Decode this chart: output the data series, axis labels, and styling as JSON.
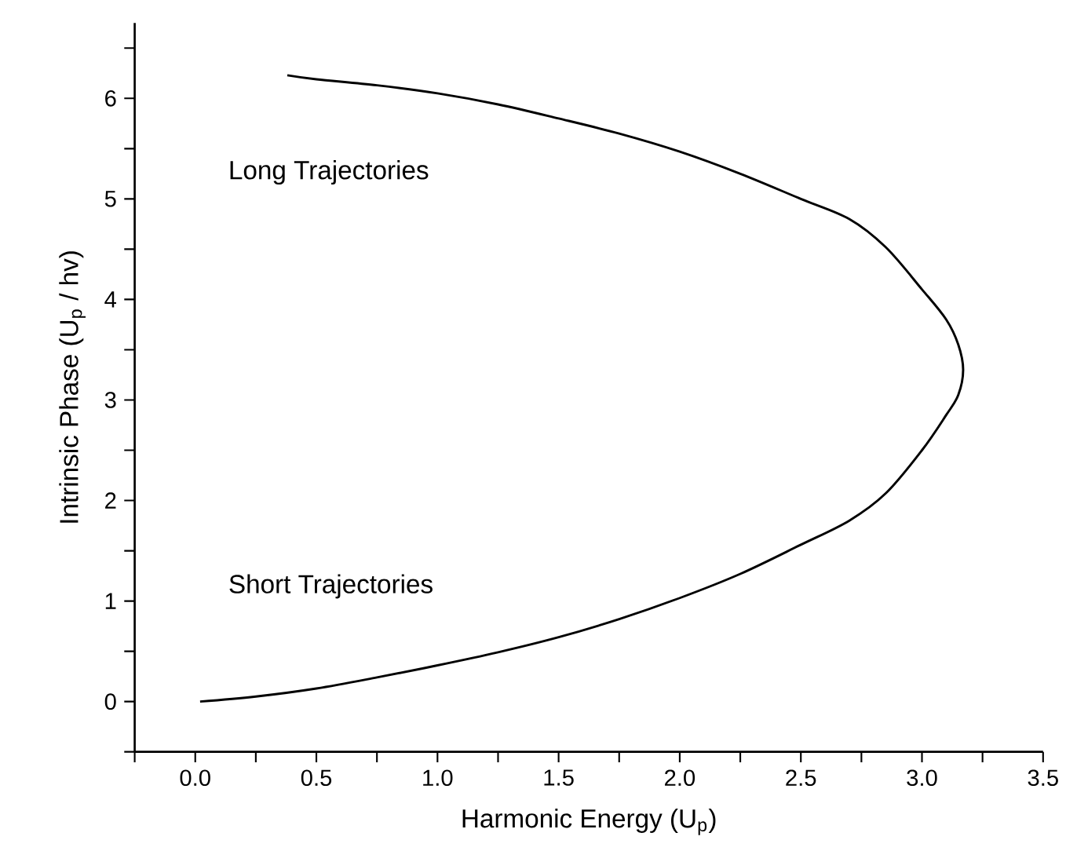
{
  "chart_data": {
    "type": "line",
    "xlabel": "Harmonic Energy (U$_{p}$)",
    "ylabel": "Intrinsic Phase (U$_{p}$ / hv)",
    "series": [
      {
        "color": "#000000",
        "x": [
          0.02,
          0.25,
          0.5,
          0.75,
          1.0,
          1.25,
          1.5,
          1.75,
          2.0,
          2.25,
          2.5,
          2.7,
          2.85,
          3.0,
          3.1,
          3.15,
          3.17,
          3.15,
          3.1,
          3.0,
          2.85,
          2.7,
          2.5,
          2.25,
          2.0,
          1.75,
          1.5,
          1.25,
          1.0,
          0.75,
          0.5,
          0.38
        ],
        "values": [
          0.0,
          0.05,
          0.13,
          0.24,
          0.36,
          0.49,
          0.64,
          0.82,
          1.03,
          1.27,
          1.56,
          1.8,
          2.07,
          2.5,
          2.85,
          3.05,
          3.3,
          3.55,
          3.8,
          4.1,
          4.52,
          4.8,
          5.0,
          5.25,
          5.47,
          5.65,
          5.8,
          5.94,
          6.05,
          6.13,
          6.19,
          6.23
        ]
      }
    ],
    "xlim": [
      -0.25,
      3.5
    ],
    "ylim": [
      -0.5,
      6.75
    ],
    "xticks": [
      {
        "value": -0.25,
        "label": null
      },
      {
        "value": 0,
        "label": "0.0"
      },
      {
        "value": 0.25,
        "label": null
      },
      0.5,
      {
        "value": 0.75,
        "label": null
      },
      {
        "value": 1,
        "label": "1.0"
      },
      {
        "value": 1.25,
        "label": null
      },
      1.5,
      {
        "value": 1.75,
        "label": null
      },
      {
        "value": 2,
        "label": "2.0"
      },
      {
        "value": 2.25,
        "label": null
      },
      2.5,
      {
        "value": 2.75,
        "label": null
      },
      {
        "value": 3,
        "label": "3.0"
      },
      {
        "value": 3.25,
        "label": null
      },
      3.5
    ],
    "yticks": [
      {
        "value": -0.5,
        "label": null
      },
      0,
      {
        "value": 0.5,
        "label": null
      },
      1,
      {
        "value": 1.5,
        "label": null
      },
      2,
      {
        "value": 2.5,
        "label": null
      },
      3,
      {
        "value": 3.5,
        "label": null
      },
      4,
      {
        "value": 4.5,
        "label": null
      },
      5,
      {
        "value": 5.5,
        "label": null
      },
      6,
      {
        "value": 6.5,
        "label": null
      }
    ],
    "grid": false,
    "marker": "none",
    "line_style": "solid",
    "annotations": [
      "Long Trajectories",
      "Short Trajectories"
    ]
  }
}
